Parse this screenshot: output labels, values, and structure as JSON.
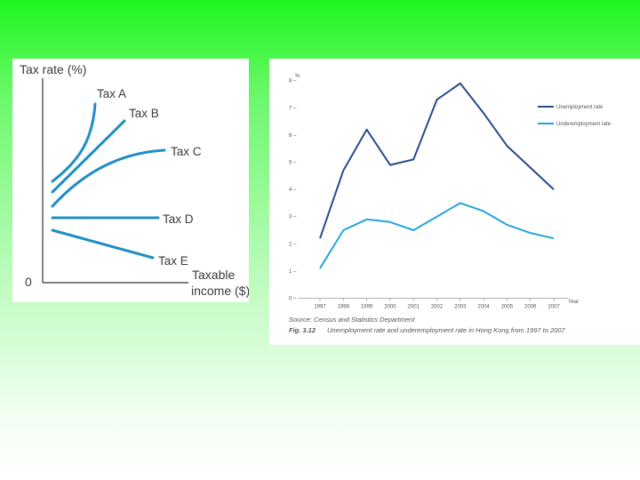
{
  "colors": {
    "curve_blue": "#1e8ec4",
    "unemployment": "#274a8c",
    "underemployment": "#22a4dc",
    "caption_accent": "#2f6fb6"
  },
  "chart_data": [
    {
      "type": "line",
      "title": "",
      "xlabel": "Taxable income ($)",
      "ylabel": "Tax rate (%)",
      "origin_label": "0",
      "series": [
        {
          "name": "Tax A",
          "shape": "progressive-steep"
        },
        {
          "name": "Tax B",
          "shape": "progressive-linear"
        },
        {
          "name": "Tax C",
          "shape": "progressive-flattening"
        },
        {
          "name": "Tax D",
          "shape": "proportional"
        },
        {
          "name": "Tax E",
          "shape": "regressive"
        }
      ]
    },
    {
      "type": "line",
      "ylabel": "%",
      "xlabel": "Year",
      "ylim": [
        0,
        8
      ],
      "yticks": [
        0,
        1,
        2,
        3,
        4,
        5,
        6,
        7,
        8
      ],
      "categories": [
        "1997",
        "1998",
        "1999",
        "2000",
        "2001",
        "2002",
        "2003",
        "2004",
        "2005",
        "2006",
        "2007"
      ],
      "series": [
        {
          "name": "Unemployment rate",
          "values": [
            2.2,
            4.7,
            6.2,
            4.9,
            5.1,
            7.3,
            7.9,
            6.8,
            5.6,
            4.8,
            4.0
          ]
        },
        {
          "name": "Underemployment rate",
          "values": [
            1.1,
            2.5,
            2.9,
            2.8,
            2.5,
            3.0,
            3.5,
            3.2,
            2.7,
            2.4,
            2.2
          ]
        }
      ],
      "legend_position": "top-right",
      "source": "Source: Census and Statistics Department",
      "fig_label": "Fig. 3.12",
      "caption": "Unemployment rate and underemployment rate in Hong Kong from 1997 to 2007"
    }
  ]
}
